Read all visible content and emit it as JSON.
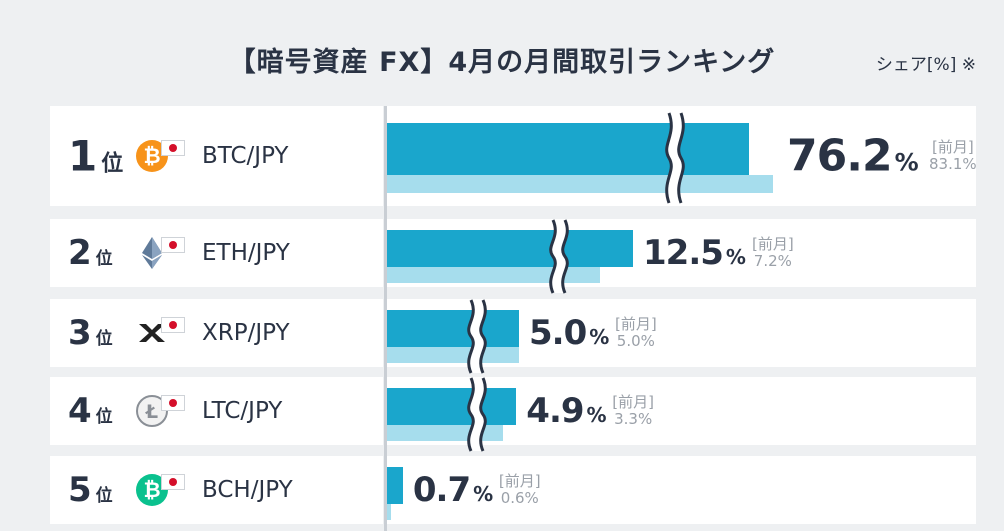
{
  "title": "【暗号資産 FX】4月の月間取引ランキング",
  "share_label": "シェア[%] ※",
  "percent_symbol": "%",
  "prev_label": "[前月]",
  "rank_unit": "位",
  "rows": [
    {
      "rank": "1",
      "pair": "BTC/JPY",
      "coin": "bitcoin-icon",
      "current": "76.2",
      "previous": "83.1%"
    },
    {
      "rank": "2",
      "pair": "ETH/JPY",
      "coin": "ethereum-icon",
      "current": "12.5",
      "previous": "7.2%"
    },
    {
      "rank": "3",
      "pair": "XRP/JPY",
      "coin": "xrp-icon",
      "current": "5.0",
      "previous": "5.0%"
    },
    {
      "rank": "4",
      "pair": "LTC/JPY",
      "coin": "litecoin-icon",
      "current": "4.9",
      "previous": "3.3%"
    },
    {
      "rank": "5",
      "pair": "BCH/JPY",
      "coin": "bitcoin-cash-icon",
      "current": "0.7",
      "previous": "0.6%"
    }
  ],
  "chart_data": {
    "type": "bar",
    "orientation": "horizontal",
    "title": "【暗号資産 FX】4月の月間取引ランキング",
    "unit": "%",
    "categories": [
      "BTC/JPY",
      "ETH/JPY",
      "XRP/JPY",
      "LTC/JPY",
      "BCH/JPY"
    ],
    "series": [
      {
        "name": "4月",
        "values": [
          76.2,
          12.5,
          5.0,
          4.9,
          0.7
        ]
      },
      {
        "name": "前月",
        "values": [
          83.1,
          7.2,
          5.0,
          3.3,
          0.6
        ]
      }
    ],
    "axis_break": true
  },
  "colors": {
    "current_bar": "#1aa6cc",
    "previous_bar": "#a6dded",
    "bitcoin": "#f7931a",
    "bitcoin_cash": "#0ac18e"
  }
}
